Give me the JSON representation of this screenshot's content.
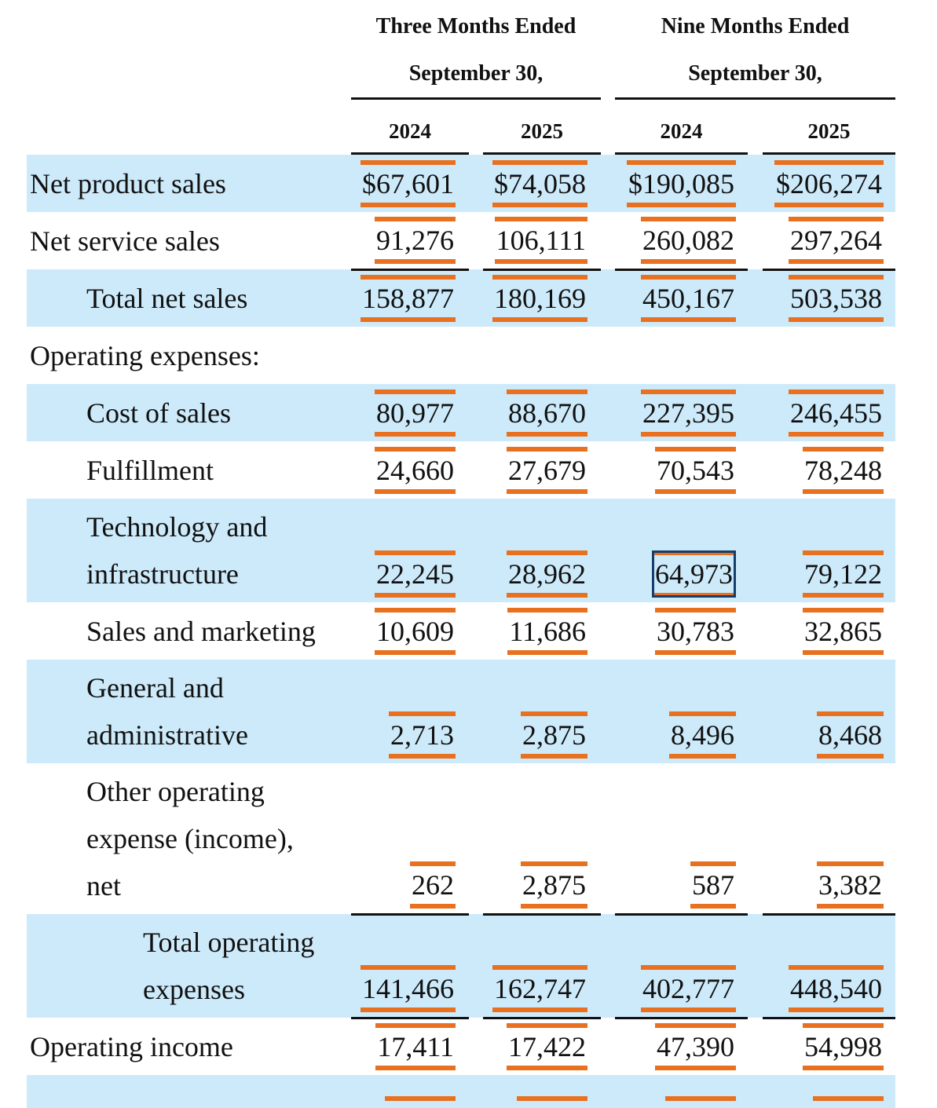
{
  "header": {
    "groups": [
      {
        "line1": "Three Months Ended",
        "line2": "September 30,"
      },
      {
        "line1": "Nine Months Ended",
        "line2": "September 30,"
      }
    ],
    "years": [
      "2024",
      "2025",
      "2024",
      "2025"
    ]
  },
  "colors": {
    "highlight_band": "#cdeafa",
    "underline_accent": "#e8701e",
    "selection_box": "#123f6b"
  },
  "rows": [
    {
      "label": [
        "Net product sales"
      ],
      "indent": 0,
      "blue": true,
      "values": [
        "$67,601",
        "$74,058",
        "$190,085",
        "$206,274"
      ]
    },
    {
      "label": [
        "Net service sales"
      ],
      "indent": 0,
      "blue": false,
      "rule": true,
      "values": [
        "91,276",
        "106,111",
        "260,082",
        "297,264"
      ]
    },
    {
      "label": [
        "Total net sales"
      ],
      "indent": 1,
      "blue": true,
      "values": [
        "158,877",
        "180,169",
        "450,167",
        "503,538"
      ]
    },
    {
      "label": [
        "Operating expenses:"
      ],
      "indent": 0,
      "blue": false,
      "values": []
    },
    {
      "label": [
        "Cost of sales"
      ],
      "indent": 1,
      "blue": true,
      "values": [
        "80,977",
        "88,670",
        "227,395",
        "246,455"
      ]
    },
    {
      "label": [
        "Fulfillment"
      ],
      "indent": 1,
      "blue": false,
      "values": [
        "24,660",
        "27,679",
        "70,543",
        "78,248"
      ]
    },
    {
      "label": [
        "Technology and",
        "infrastructure"
      ],
      "indent": 1,
      "blue": true,
      "values": [
        "22,245",
        "28,962",
        "64,973",
        "79,122"
      ],
      "selected_col": 2
    },
    {
      "label": [
        "Sales and marketing"
      ],
      "indent": 1,
      "blue": false,
      "values": [
        "10,609",
        "11,686",
        "30,783",
        "32,865"
      ]
    },
    {
      "label": [
        "General and",
        "administrative"
      ],
      "indent": 1,
      "blue": true,
      "values": [
        "2,713",
        "2,875",
        "8,496",
        "8,468"
      ]
    },
    {
      "label": [
        "Other operating",
        "expense (income),",
        "net"
      ],
      "indent": 1,
      "blue": false,
      "rule": true,
      "values": [
        "262",
        "2,875",
        "587",
        "3,382"
      ]
    },
    {
      "label": [
        "Total operating",
        "expenses"
      ],
      "indent": 2,
      "blue": true,
      "rule": true,
      "values": [
        "141,466",
        "162,747",
        "402,777",
        "448,540"
      ]
    },
    {
      "label": [
        "Operating income"
      ],
      "indent": 0,
      "blue": false,
      "values": [
        "17,411",
        "17,422",
        "47,390",
        "54,998"
      ]
    }
  ]
}
